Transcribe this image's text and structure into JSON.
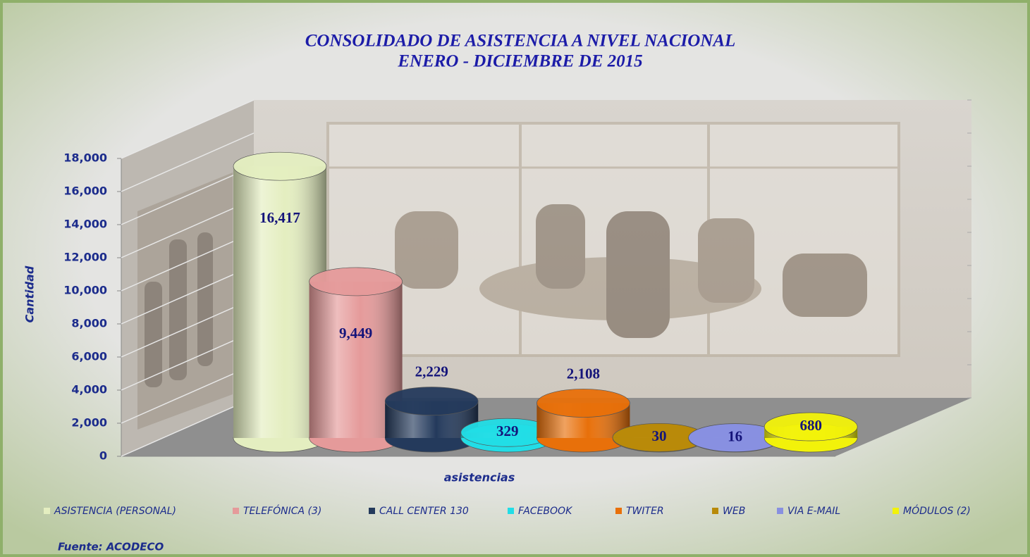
{
  "chart_data": {
    "type": "bar",
    "title": "CONSOLIDADO DE  ASISTENCIA A NIVEL NACIONAL",
    "subtitle": "ENERO  - DICIEMBRE DE 2015",
    "y_label": "Cantidad",
    "x_label": "asistencias",
    "source": "Fuente: ACODECO",
    "ylim": [
      0,
      18000
    ],
    "yticks": [
      0,
      {
        "value": 2000,
        "label": "2,000"
      },
      {
        "value": 4000,
        "label": "4,000"
      },
      {
        "value": 6000,
        "label": "6,000"
      },
      {
        "value": 8000,
        "label": "8,000"
      },
      {
        "value": 10000,
        "label": "10,000"
      },
      {
        "value": 12000,
        "label": "12,000"
      },
      {
        "value": 14000,
        "label": "14,000"
      },
      {
        "value": 16000,
        "label": "16,000"
      },
      {
        "value": 18000,
        "label": "18,000"
      }
    ],
    "series": [
      {
        "name": "ASISTENCIA (PERSONAL)",
        "color": "#e4eec0",
        "values": [
          16417
        ],
        "value_labels": [
          "16,417"
        ]
      },
      {
        "name": "TELEFÓNICA (3)",
        "color": "#e59a9a",
        "values": [
          9449
        ],
        "value_labels": [
          "9,449"
        ]
      },
      {
        "name": "CALL CENTER 130",
        "color": "#243a5c",
        "values": [
          2229
        ],
        "value_labels": [
          "2,229"
        ]
      },
      {
        "name": "FACEBOOK",
        "color": "#22dde6",
        "values": [
          329
        ],
        "value_labels": [
          "329"
        ]
      },
      {
        "name": "TWITER",
        "color": "#e8700a",
        "values": [
          2108
        ],
        "value_labels": [
          "2,108"
        ]
      },
      {
        "name": "WEB",
        "color": "#b88a0a",
        "values": [
          30
        ]
      },
      {
        "name": "VIA E-MAIL",
        "color": "#8890e0",
        "values": [
          16
        ]
      },
      {
        "name": "MÓDULOS (2)",
        "color": "#f2f20a",
        "values": [
          680
        ]
      }
    ]
  }
}
